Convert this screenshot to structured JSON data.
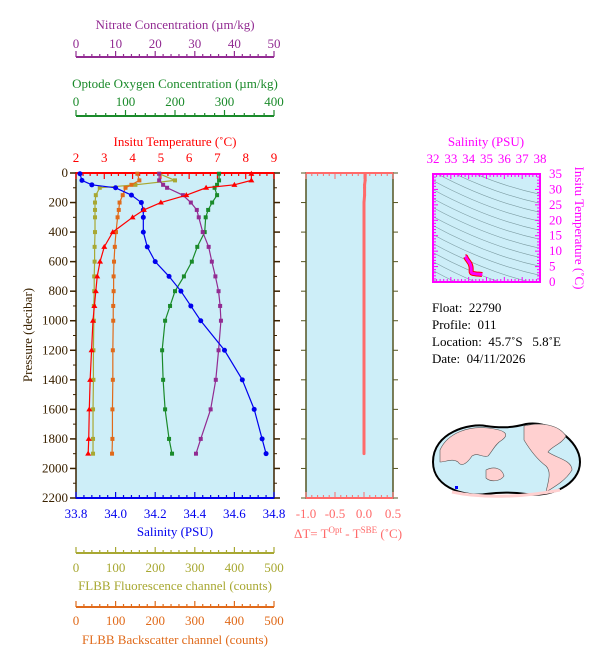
{
  "colors": {
    "nitrate": "#922b92",
    "oxygen": "#1a8a2a",
    "temperature": "#ff0000",
    "salinity": "#0000ee",
    "fluorescence": "#a8a832",
    "backscatter": "#e06a1a",
    "deltaT": "#ff6a6a",
    "ts": "#ff00ff",
    "panel_bg": "#cdeef8",
    "pressure_axis": "#3a2200"
  },
  "info": {
    "float_label": "Float:",
    "float": "22790",
    "profile_label": "Profile:",
    "profile": "011",
    "location_label": "Location:",
    "location": "45.7˚S   5.8˚E",
    "date_label": "Date:",
    "date": "04/11/2026"
  },
  "chart_data": [
    {
      "type": "line",
      "title": "",
      "ylabel": "Pressure (decibar)",
      "ylim": [
        2200,
        0
      ],
      "yticks": [
        "0",
        "200",
        "400",
        "600",
        "800",
        "1000",
        "1200",
        "1400",
        "1600",
        "1800",
        "2000",
        "2200"
      ],
      "pressure": [
        5,
        50,
        80,
        100,
        150,
        200,
        250,
        300,
        400,
        500,
        600,
        700,
        800,
        900,
        1000,
        1200,
        1400,
        1600,
        1800,
        1900
      ],
      "axes": {
        "nitrate": {
          "label": "Nitrate Concentration (µm/kg)",
          "range": [
            0,
            50
          ],
          "ticks": [
            "0",
            "10",
            "20",
            "30",
            "40",
            "50"
          ],
          "position": "top"
        },
        "oxygen": {
          "label": "Optode Oxygen Concentration (µm/kg)",
          "range": [
            0,
            400
          ],
          "ticks": [
            "0",
            "100",
            "200",
            "300",
            "400"
          ],
          "position": "top"
        },
        "temperature": {
          "label": "Insitu Temperature (˚C)",
          "range": [
            2,
            9
          ],
          "ticks": [
            "2",
            "3",
            "4",
            "5",
            "6",
            "7",
            "8",
            "9"
          ],
          "position": "top"
        },
        "salinity": {
          "label": "Salinity (PSU)",
          "range": [
            33.8,
            34.8
          ],
          "ticks": [
            "33.8",
            "34.0",
            "34.2",
            "34.4",
            "34.6",
            "34.8"
          ],
          "position": "bottom"
        },
        "fluorescence": {
          "label": "FLBB Fluorescence channel (counts)",
          "range": [
            0,
            500
          ],
          "ticks": [
            "0",
            "100",
            "200",
            "300",
            "400",
            "500"
          ],
          "position": "bottom"
        },
        "backscatter": {
          "label": "FLBB Backscatter channel (counts)",
          "range": [
            0,
            500
          ],
          "ticks": [
            "0",
            "100",
            "200",
            "300",
            "400",
            "500"
          ],
          "position": "bottom"
        }
      },
      "series": [
        {
          "key": "temperature",
          "values": [
            8.2,
            8.2,
            7.6,
            6.6,
            5.9,
            5.0,
            4.4,
            4.0,
            3.3,
            3.0,
            2.85,
            2.75,
            2.7,
            2.65,
            2.6,
            2.55,
            2.5,
            2.47,
            2.45,
            2.43
          ]
        },
        {
          "key": "salinity",
          "values": [
            33.82,
            33.83,
            33.88,
            34.0,
            34.08,
            34.13,
            34.14,
            34.14,
            34.14,
            34.16,
            34.2,
            34.27,
            34.33,
            34.38,
            34.43,
            34.55,
            34.64,
            34.7,
            34.74,
            34.76
          ]
        },
        {
          "key": "oxygen",
          "values": [
            289,
            289,
            285,
            280,
            285,
            275,
            267,
            262,
            260,
            245,
            234,
            218,
            200,
            190,
            180,
            174,
            176,
            180,
            188,
            194
          ]
        },
        {
          "key": "nitrate",
          "values": [
            21,
            21,
            22,
            23,
            27,
            29,
            30.5,
            31,
            32,
            33.5,
            34.3,
            35.2,
            36,
            36.4,
            36.6,
            36,
            35.3,
            34,
            31.5,
            30.3
          ]
        },
        {
          "key": "fluorescence",
          "values": [
            210,
            250,
            150,
            60,
            50,
            48,
            48,
            48,
            48,
            47,
            47,
            46,
            46,
            45,
            45,
            44,
            44,
            43,
            43,
            43
          ]
        },
        {
          "key": "backscatter",
          "values": [
            155,
            160,
            140,
            125,
            118,
            110,
            108,
            105,
            101,
            98,
            96,
            95,
            95,
            94,
            94,
            93,
            93,
            92,
            92,
            91
          ]
        }
      ]
    },
    {
      "type": "line",
      "xlabel": "ΔT= T^Opt - T^SBE (˚C)",
      "xlabel_parts": {
        "a": "ΔT= T",
        "b": "Opt",
        "c": " - T",
        "d": "SBE",
        "e": " (˚C)"
      },
      "xlim": [
        -1.0,
        0.5
      ],
      "xticks": [
        "-1.0",
        "-0.5",
        "0.0",
        "0.5"
      ],
      "ylim": [
        2200,
        0
      ],
      "values": [
        0.02,
        0.02,
        0.01,
        0.01,
        0.01,
        0.0,
        0.0,
        0.0,
        0.0,
        0.0,
        0.0,
        0.0,
        0.0,
        0.0,
        0.0,
        0.0,
        0.0,
        0.0,
        0.0,
        0.0
      ]
    },
    {
      "type": "scatter",
      "xlabel": "Salinity (PSU)",
      "ylabel": "Insitu Temperature (˚C)",
      "xlim": [
        32,
        38
      ],
      "ylim": [
        0,
        35
      ],
      "xticks": [
        "32",
        "33",
        "34",
        "35",
        "36",
        "37",
        "38"
      ],
      "yticks": [
        "0",
        "5",
        "10",
        "15",
        "20",
        "25",
        "30",
        "35"
      ],
      "density_contours": true
    }
  ]
}
